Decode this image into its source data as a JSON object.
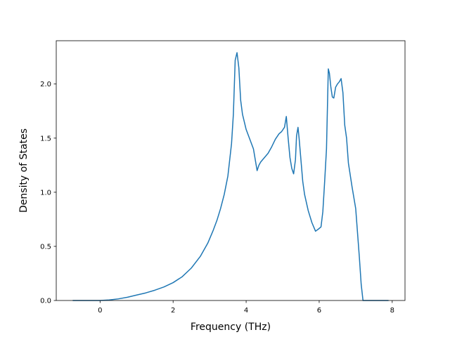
{
  "chart_data": {
    "type": "line",
    "title": "",
    "xlabel": "Frequency (THz)",
    "ylabel": "Density of States",
    "xlim": [
      -1.2,
      8.35
    ],
    "ylim": [
      0.0,
      2.4
    ],
    "grid": false,
    "legend": "none",
    "xticks": [
      0,
      2,
      4,
      6,
      8
    ],
    "yticks": [
      0.0,
      0.5,
      1.0,
      1.5,
      2.0
    ],
    "xtick_labels": [
      "0",
      "2",
      "4",
      "6",
      "8"
    ],
    "ytick_labels": [
      "0.0",
      "0.5",
      "1.0",
      "1.5",
      "2.0"
    ],
    "series": [
      {
        "color": "#1f77b4",
        "x": [
          -0.75,
          0.0,
          0.25,
          0.5,
          0.75,
          1.0,
          1.25,
          1.5,
          1.75,
          2.0,
          2.25,
          2.5,
          2.75,
          2.95,
          3.1,
          3.2,
          3.3,
          3.4,
          3.5,
          3.55,
          3.6,
          3.65,
          3.7,
          3.75,
          3.8,
          3.85,
          3.9,
          4.0,
          4.1,
          4.2,
          4.3,
          4.35,
          4.4,
          4.5,
          4.6,
          4.7,
          4.8,
          4.9,
          4.97,
          5.05,
          5.1,
          5.15,
          5.2,
          5.25,
          5.3,
          5.35,
          5.38,
          5.42,
          5.45,
          5.5,
          5.55,
          5.6,
          5.7,
          5.8,
          5.9,
          5.98,
          6.05,
          6.1,
          6.15,
          6.2,
          6.25,
          6.28,
          6.32,
          6.36,
          6.4,
          6.45,
          6.5,
          6.55,
          6.6,
          6.65,
          6.7,
          6.75,
          6.8,
          6.9,
          7.0,
          7.1,
          7.15,
          7.2,
          7.3,
          7.9
        ],
        "y": [
          0.0,
          0.0,
          0.005,
          0.015,
          0.03,
          0.05,
          0.07,
          0.095,
          0.125,
          0.165,
          0.22,
          0.3,
          0.41,
          0.53,
          0.65,
          0.74,
          0.85,
          0.98,
          1.15,
          1.3,
          1.45,
          1.72,
          2.22,
          2.29,
          2.15,
          1.85,
          1.72,
          1.58,
          1.49,
          1.4,
          1.2,
          1.25,
          1.28,
          1.32,
          1.36,
          1.42,
          1.49,
          1.54,
          1.56,
          1.6,
          1.7,
          1.5,
          1.32,
          1.22,
          1.17,
          1.3,
          1.52,
          1.6,
          1.5,
          1.3,
          1.1,
          0.98,
          0.83,
          0.72,
          0.64,
          0.66,
          0.68,
          0.82,
          1.1,
          1.4,
          2.14,
          2.1,
          1.97,
          1.88,
          1.87,
          1.97,
          2.0,
          2.02,
          2.05,
          1.92,
          1.62,
          1.5,
          1.27,
          1.05,
          0.85,
          0.4,
          0.15,
          0.0,
          0.0,
          0.0
        ]
      }
    ]
  }
}
